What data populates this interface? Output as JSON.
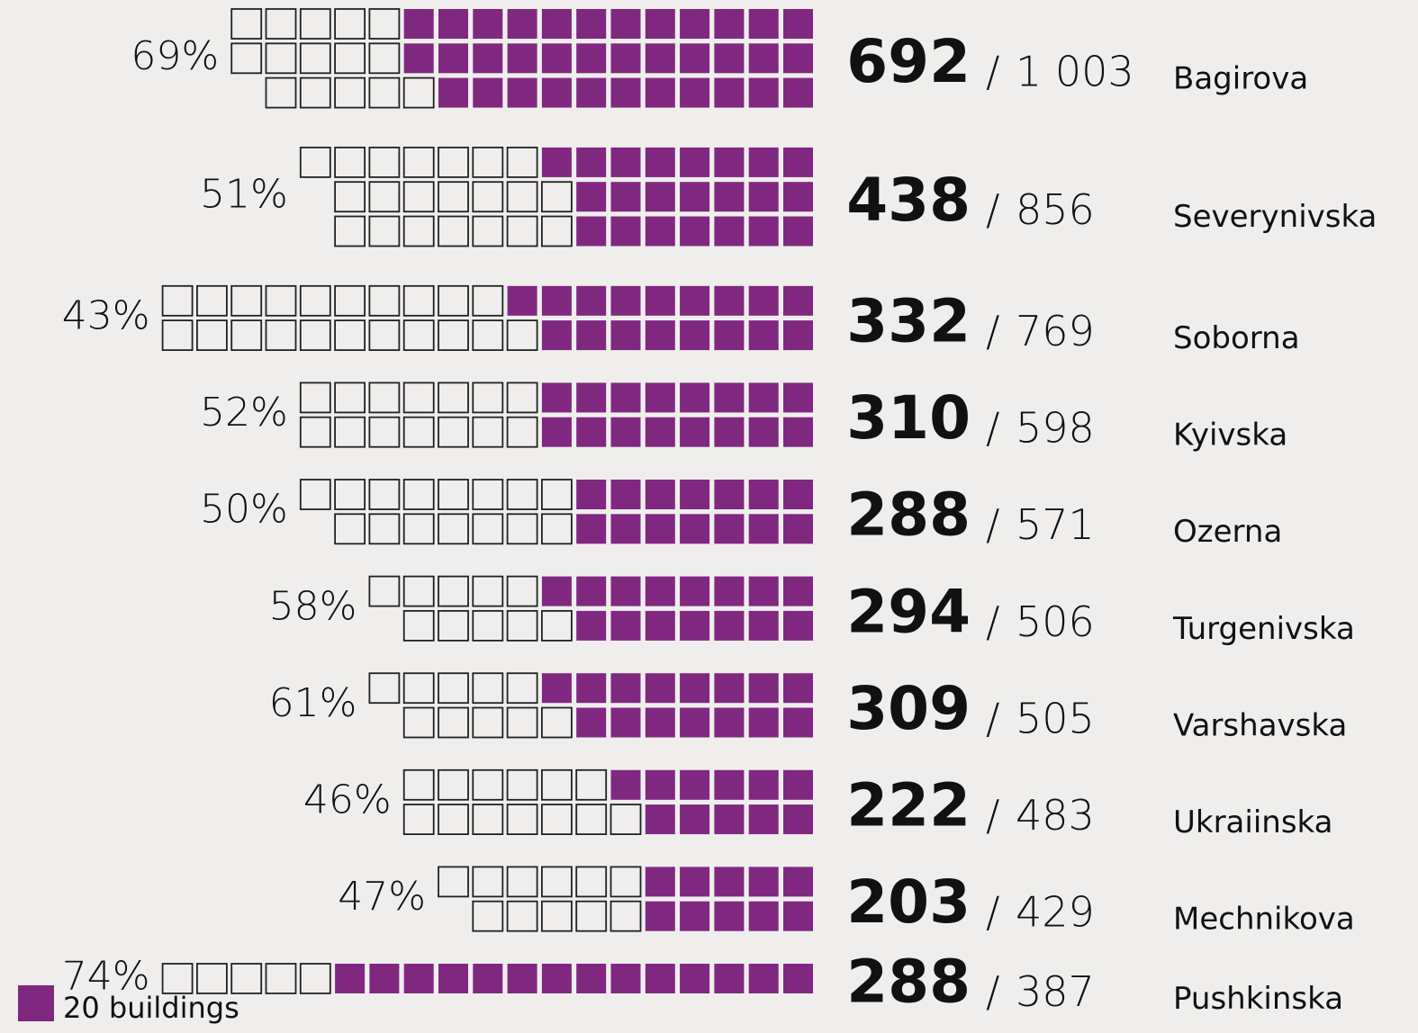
{
  "chart_data": {
    "type": "waffle",
    "color": "#80287f",
    "separator": "/",
    "legend": {
      "value": 20,
      "label": "20 buildings"
    },
    "rows": [
      {
        "name": "Bagirova",
        "value": 692,
        "total": 1003,
        "total_label": "1 003",
        "percent": 69,
        "percent_label": "69%"
      },
      {
        "name": "Severynivska",
        "value": 438,
        "total": 856,
        "percent": 51,
        "percent_label": "51%"
      },
      {
        "name": "Soborna",
        "value": 332,
        "total": 769,
        "percent": 43,
        "percent_label": "43%"
      },
      {
        "name": "Kyivska",
        "value": 310,
        "total": 598,
        "percent": 52,
        "percent_label": "52%"
      },
      {
        "name": "Ozerna",
        "value": 288,
        "total": 571,
        "percent": 50,
        "percent_label": "50%"
      },
      {
        "name": "Turgenivska",
        "value": 294,
        "total": 506,
        "percent": 58,
        "percent_label": "58%"
      },
      {
        "name": "Varshavska",
        "value": 309,
        "total": 505,
        "percent": 61,
        "percent_label": "61%"
      },
      {
        "name": "Ukraiinska",
        "value": 222,
        "total": 483,
        "percent": 46,
        "percent_label": "46%"
      },
      {
        "name": "Mechnikova",
        "value": 203,
        "total": 429,
        "percent": 47,
        "percent_label": "47%"
      },
      {
        "name": "Pushkinska",
        "value": 288,
        "total": 387,
        "percent": 74,
        "percent_label": "74%"
      }
    ]
  }
}
